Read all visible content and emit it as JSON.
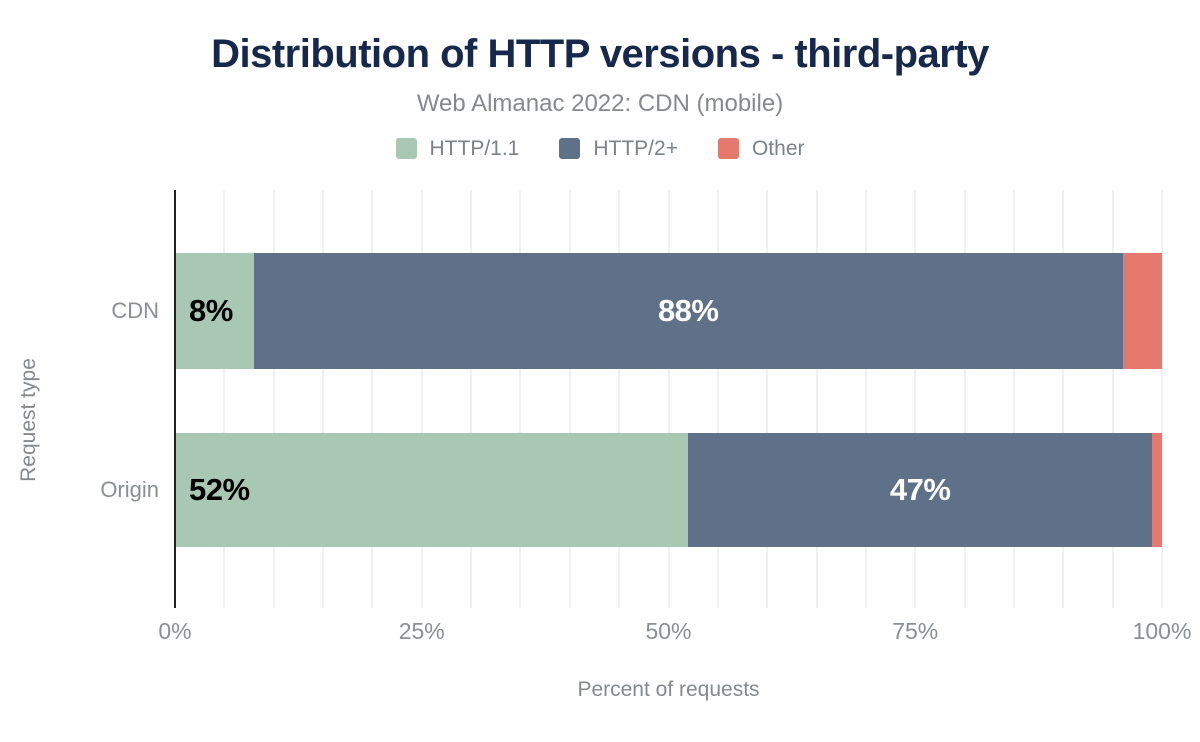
{
  "chart": {
    "title": "Distribution of HTTP versions - third-party",
    "subtitle": "Web Almanac 2022: CDN (mobile)",
    "xlabel": "Percent of requests",
    "ylabel": "Request type"
  },
  "chart_data": {
    "type": "bar",
    "orientation": "horizontal",
    "stacked": true,
    "title": "Distribution of HTTP versions - third-party",
    "subtitle": "Web Almanac 2022: CDN (mobile)",
    "xlabel": "Percent of requests",
    "ylabel": "Request type",
    "categories": [
      "CDN",
      "Origin"
    ],
    "series": [
      {
        "name": "HTTP/1.1",
        "color": "#a8c8b4",
        "label_color": "#000000",
        "label_align": "left",
        "values": [
          8,
          52
        ]
      },
      {
        "name": "HTTP/2+",
        "color": "#5f7189",
        "label_color": "#ffffff",
        "label_align": "center",
        "values": [
          88,
          47
        ]
      },
      {
        "name": "Other",
        "color": "#e5796d",
        "label_color": null,
        "label_align": "none",
        "values": [
          4,
          1
        ]
      }
    ],
    "data_labels": [
      [
        "8%",
        "88%",
        ""
      ],
      [
        "52%",
        "47%",
        ""
      ]
    ],
    "x_ticks": [
      "0%",
      "25%",
      "50%",
      "75%",
      "100%"
    ],
    "xlim": [
      0,
      100
    ],
    "grid": {
      "on": true,
      "minor_step": 5,
      "color": "#f0f0f0"
    },
    "legend_position": "top"
  },
  "colors": {
    "title": "#16294d",
    "muted_text": "#85898e",
    "axis_line": "#202124",
    "background": "#ffffff"
  }
}
